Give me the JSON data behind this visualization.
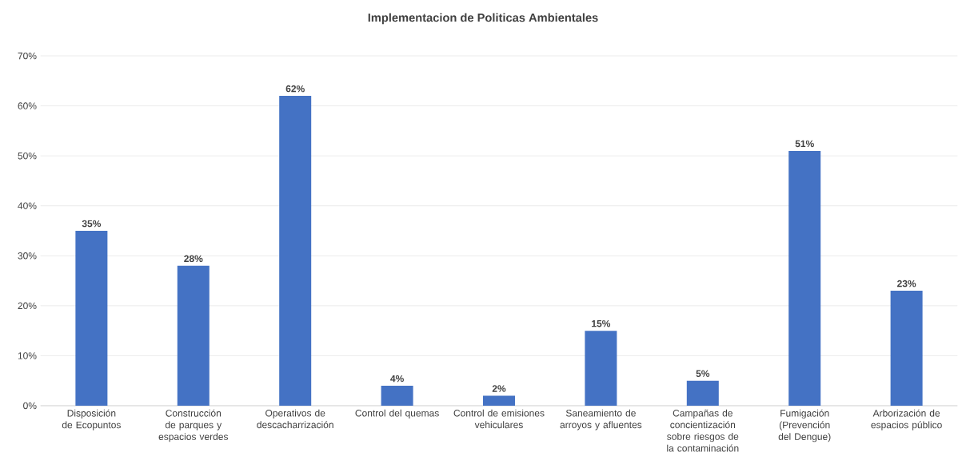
{
  "chart_data": {
    "type": "bar",
    "title": "Implementacion de Politicas Ambientales",
    "categories": [
      "Disposición de Ecopuntos",
      "Construcción de parques y espacios verdes",
      "Operativos de descacharrización",
      "Control del quemas",
      "Control de emisiones vehiculares",
      "Saneamiento de arroyos y afluentes",
      "Campañas de concientización sobre riesgos de la contaminación",
      "Fumigación (Prevención del Dengue)",
      "Arborización de espacios público"
    ],
    "values": [
      35,
      28,
      62,
      4,
      2,
      15,
      5,
      51,
      23
    ],
    "value_labels": [
      "35%",
      "28%",
      "62%",
      "4%",
      "2%",
      "15%",
      "5%",
      "51%",
      "23%"
    ],
    "color": "#4472c4",
    "ylim": [
      0,
      70
    ],
    "yticks": [
      {
        "value": 0,
        "label": "0%"
      },
      {
        "value": 10,
        "label": "10%"
      },
      {
        "value": 20,
        "label": "20%"
      },
      {
        "value": 30,
        "label": "30%"
      },
      {
        "value": 40,
        "label": "40%"
      },
      {
        "value": 50,
        "label": "50%"
      },
      {
        "value": 60,
        "label": "60%"
      },
      {
        "value": 70,
        "label": "70%"
      }
    ],
    "grid": "y"
  }
}
